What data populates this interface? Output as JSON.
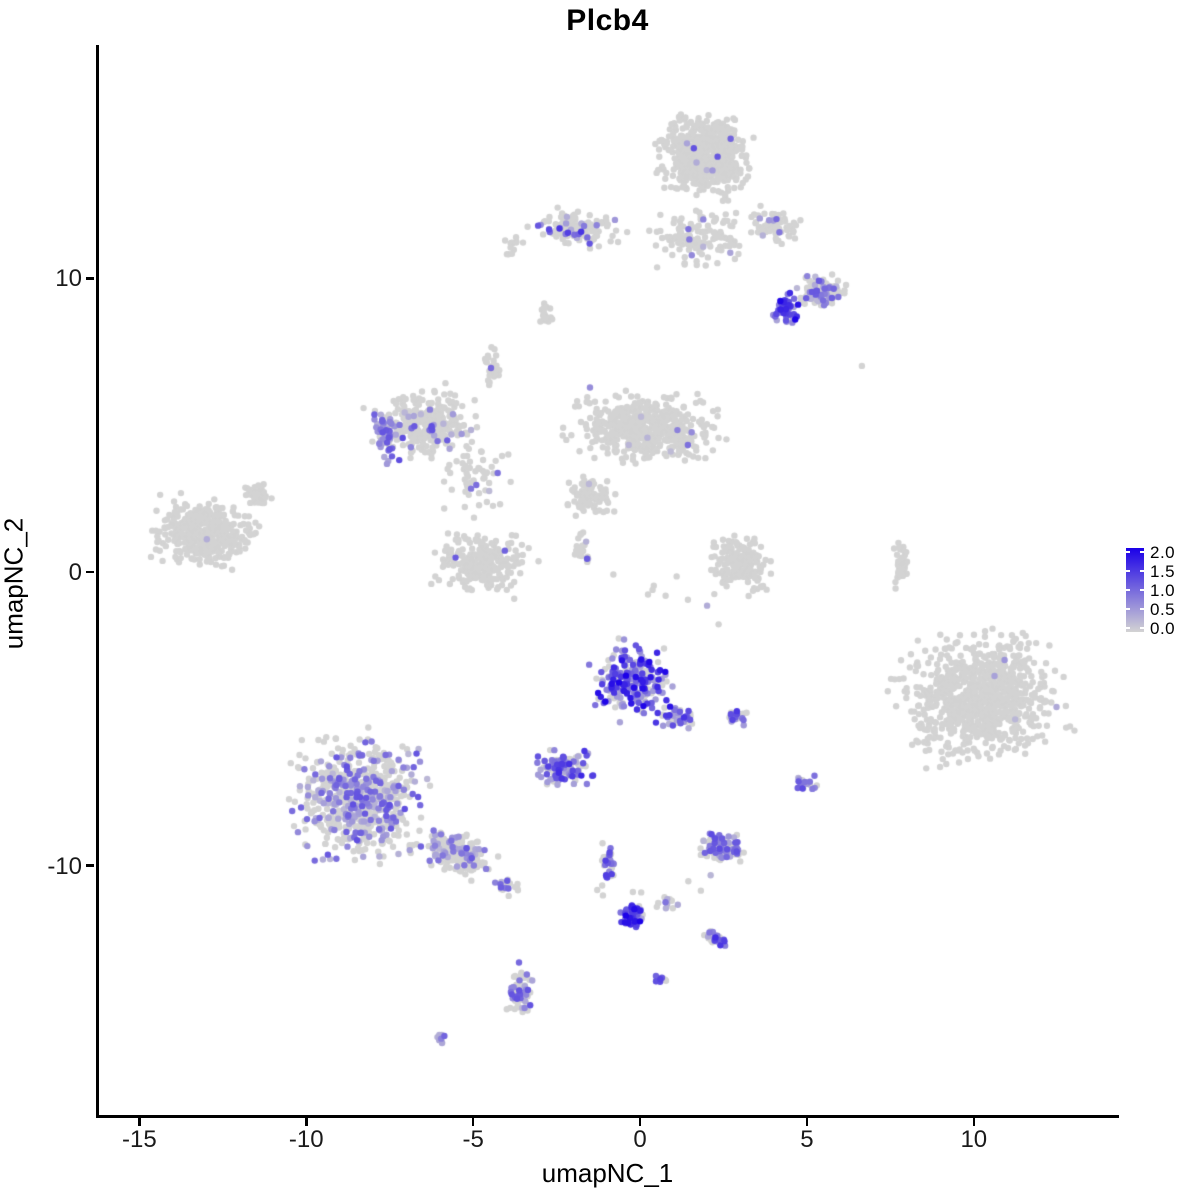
{
  "title": "Plcb4",
  "colors": {
    "background": "#ffffff",
    "axis": "#000000",
    "expression_low": "#d3d3d3",
    "expression_high": "#1b00e8"
  },
  "legend": {
    "min": 0.0,
    "max": 2.0,
    "labels": [
      "2.0",
      "1.5",
      "1.0",
      "0.5",
      "0.0"
    ]
  },
  "chart_data": {
    "type": "scatter",
    "title": "Plcb4",
    "xlabel": "umapNC_1",
    "ylabel": "umapNC_2",
    "xlim": [
      -16.3,
      14.35
    ],
    "ylim": [
      -18.6,
      17.95
    ],
    "grid": false,
    "legend_position": "right",
    "color_scale": {
      "low": "#d3d3d3",
      "high": "#1b00e8",
      "domain": [
        0,
        2
      ]
    },
    "x_ticks": [
      {
        "value": -15,
        "label": "-15"
      },
      {
        "value": -10,
        "label": "-10"
      },
      {
        "value": -5,
        "label": "-5"
      },
      {
        "value": 0,
        "label": "0"
      },
      {
        "value": 5,
        "label": "5"
      },
      {
        "value": 10,
        "label": "10"
      }
    ],
    "y_ticks": [
      {
        "value": 10,
        "label": "10"
      },
      {
        "value": 0,
        "label": "0"
      },
      {
        "value": -10,
        "label": "-10"
      }
    ],
    "point_radius": 3.2,
    "seed": 42,
    "clusters": [
      {
        "name": "top-main",
        "cx": 1.85,
        "cy": 14.2,
        "rx": 1.7,
        "ry": 1.65,
        "rot": -15,
        "n": 650,
        "frac": 0.012,
        "emax": 1.4
      },
      {
        "name": "top-scatter-below",
        "cx": 1.6,
        "cy": 11.4,
        "rx": 1.9,
        "ry": 1.25,
        "rot": 0,
        "n": 130,
        "frac": 0.04,
        "emax": 1.2
      },
      {
        "name": "top-left",
        "cx": -2.0,
        "cy": 11.7,
        "rx": 1.6,
        "ry": 0.75,
        "rot": -8,
        "n": 150,
        "frac": 0.16,
        "emax": 1.6
      },
      {
        "name": "top-left-strand",
        "cx": -3.85,
        "cy": 11.1,
        "rx": 0.35,
        "ry": 0.5,
        "rot": 0,
        "n": 14,
        "frac": 0.08,
        "emax": 1.0
      },
      {
        "name": "top-right-spur",
        "cx": 3.95,
        "cy": 11.8,
        "rx": 0.95,
        "ry": 0.7,
        "rot": -25,
        "n": 85,
        "frac": 0.07,
        "emax": 1.5
      },
      {
        "name": "right-upper",
        "cx": 5.35,
        "cy": 9.55,
        "rx": 0.95,
        "ry": 0.68,
        "rot": 0,
        "n": 115,
        "frac": 0.3,
        "emax": 1.2
      },
      {
        "name": "right-upper-dense",
        "cx": 4.3,
        "cy": 9.0,
        "rx": 0.55,
        "ry": 0.75,
        "rot": 0,
        "n": 55,
        "frac": 0.8,
        "emax": 2.0
      },
      {
        "name": "mini-mid-strand",
        "cx": -2.9,
        "cy": 8.85,
        "rx": 0.28,
        "ry": 0.6,
        "rot": 0,
        "n": 20,
        "frac": 0.12,
        "emax": 1.2
      },
      {
        "name": "midleft-main",
        "cx": -6.5,
        "cy": 5.0,
        "rx": 1.95,
        "ry": 1.55,
        "rot": 0,
        "n": 300,
        "frac": 0.1,
        "emax": 1.3
      },
      {
        "name": "midleft-arc",
        "cx": -7.75,
        "cy": 4.65,
        "rx": 0.45,
        "ry": 1.3,
        "rot": 12,
        "n": 55,
        "frac": 0.85,
        "emax": 1.3
      },
      {
        "name": "midleft-strand-up",
        "cx": -4.55,
        "cy": 6.9,
        "rx": 0.3,
        "ry": 0.9,
        "rot": 0,
        "n": 30,
        "frac": 0.1,
        "emax": 1.2
      },
      {
        "name": "midleft-sparse",
        "cx": -5.0,
        "cy": 3.2,
        "rx": 1.3,
        "ry": 1.5,
        "rot": 0,
        "n": 55,
        "frac": 0.08,
        "emax": 1.1
      },
      {
        "name": "mid-main",
        "cx": 0.1,
        "cy": 4.85,
        "rx": 2.7,
        "ry": 1.5,
        "rot": -5,
        "n": 520,
        "frac": 0.012,
        "emax": 1.0
      },
      {
        "name": "mid-lower-ext",
        "cx": -1.6,
        "cy": 2.6,
        "rx": 0.95,
        "ry": 0.95,
        "rot": 0,
        "n": 90,
        "frac": 0.03,
        "emax": 1.0
      },
      {
        "name": "mid-strand-down",
        "cx": -1.85,
        "cy": 0.9,
        "rx": 0.35,
        "ry": 1.0,
        "rot": 0,
        "n": 22,
        "frac": 0.14,
        "emax": 1.5
      },
      {
        "name": "hook-cluster",
        "cx": -4.8,
        "cy": 0.3,
        "rx": 1.75,
        "ry": 1.35,
        "rot": 0,
        "n": 240,
        "frac": 0.02,
        "emax": 1.3
      },
      {
        "name": "left-main",
        "cx": -13.2,
        "cy": 1.3,
        "rx": 1.85,
        "ry": 1.5,
        "rot": -10,
        "n": 430,
        "frac": 0.004,
        "emax": 1.1
      },
      {
        "name": "left-spur",
        "cx": -11.55,
        "cy": 2.6,
        "rx": 0.75,
        "ry": 0.45,
        "rot": -40,
        "n": 40,
        "frac": 0,
        "emax": 0
      },
      {
        "name": "rightmid-crescent",
        "cx": 2.9,
        "cy": 0.25,
        "rx": 1.15,
        "ry": 1.2,
        "rot": 0,
        "n": 170,
        "frac": 0.012,
        "emax": 1.1
      },
      {
        "name": "right-strand",
        "cx": 7.75,
        "cy": 0.2,
        "rx": 0.28,
        "ry": 1.05,
        "rot": 0,
        "n": 40,
        "frac": 0,
        "emax": 0
      },
      {
        "name": "bigright",
        "cx": 10.05,
        "cy": -4.3,
        "rx": 3.0,
        "ry": 2.75,
        "rot": 20,
        "n": 850,
        "frac": 0.003,
        "emax": 1.1
      },
      {
        "name": "center-dense",
        "cx": -0.3,
        "cy": -3.7,
        "rx": 1.5,
        "ry": 1.65,
        "rot": 0,
        "n": 240,
        "frac": 0.72,
        "emax": 2.0
      },
      {
        "name": "center-tail",
        "cx": 1.0,
        "cy": -4.95,
        "rx": 0.7,
        "ry": 0.45,
        "rot": -20,
        "n": 40,
        "frac": 0.5,
        "emax": 1.6
      },
      {
        "name": "center-side",
        "cx": 2.8,
        "cy": -4.9,
        "rx": 0.4,
        "ry": 0.45,
        "rot": 0,
        "n": 25,
        "frac": 0.6,
        "emax": 1.6
      },
      {
        "name": "purple-mid-left",
        "cx": -2.35,
        "cy": -6.7,
        "rx": 1.05,
        "ry": 0.75,
        "rot": 0,
        "n": 120,
        "frac": 0.62,
        "emax": 1.7
      },
      {
        "name": "small-pair-right",
        "cx": 4.9,
        "cy": -7.2,
        "rx": 0.45,
        "ry": 0.4,
        "rot": 0,
        "n": 22,
        "frac": 0.45,
        "emax": 1.4
      },
      {
        "name": "bottomleft-main",
        "cx": -8.5,
        "cy": -7.7,
        "rx": 2.45,
        "ry": 2.6,
        "rot": 0,
        "n": 680,
        "frac": 0.3,
        "emax": 1.25
      },
      {
        "name": "bottomleft-tail",
        "cx": -5.6,
        "cy": -9.6,
        "rx": 1.5,
        "ry": 0.8,
        "rot": -25,
        "n": 190,
        "frac": 0.25,
        "emax": 1.2
      },
      {
        "name": "bottomleft-tip",
        "cx": -4.1,
        "cy": -10.7,
        "rx": 0.5,
        "ry": 0.4,
        "rot": -25,
        "n": 25,
        "frac": 0.3,
        "emax": 1.2
      },
      {
        "name": "bottomright-blob",
        "cx": 2.3,
        "cy": -9.4,
        "rx": 1.0,
        "ry": 0.68,
        "rot": 0,
        "n": 115,
        "frac": 0.42,
        "emax": 1.3
      },
      {
        "name": "strand-down",
        "cx": -1.0,
        "cy": -9.9,
        "rx": 0.27,
        "ry": 1.05,
        "rot": 8,
        "n": 35,
        "frac": 0.45,
        "emax": 1.6
      },
      {
        "name": "blue-blob",
        "cx": -0.32,
        "cy": -11.7,
        "rx": 0.45,
        "ry": 0.6,
        "rot": 0,
        "n": 65,
        "frac": 0.9,
        "emax": 2.0
      },
      {
        "name": "blob-side",
        "cx": 0.65,
        "cy": -11.3,
        "rx": 0.5,
        "ry": 0.3,
        "rot": 0,
        "n": 12,
        "frac": 0.5,
        "emax": 1.5
      },
      {
        "name": "diag-small",
        "cx": 2.2,
        "cy": -12.5,
        "rx": 0.55,
        "ry": 0.33,
        "rot": -30,
        "n": 35,
        "frac": 0.65,
        "emax": 1.6
      },
      {
        "name": "bottom-vertical",
        "cx": -3.67,
        "cy": -14.3,
        "rx": 0.5,
        "ry": 1.15,
        "rot": 0,
        "n": 75,
        "frac": 0.45,
        "emax": 1.3
      },
      {
        "name": "bottom-dots",
        "cx": 0.55,
        "cy": -13.9,
        "rx": 0.3,
        "ry": 0.27,
        "rot": 0,
        "n": 12,
        "frac": 0.6,
        "emax": 1.4
      },
      {
        "name": "tiny-bottom",
        "cx": -6.1,
        "cy": -15.9,
        "rx": 0.28,
        "ry": 0.25,
        "rot": 0,
        "n": 9,
        "frac": 0.55,
        "emax": 1.3
      },
      {
        "name": "sparse-singles-mid",
        "cx": 0.5,
        "cy": -0.8,
        "rx": 5.5,
        "ry": 1.6,
        "rot": 0,
        "n": 10,
        "frac": 0.05,
        "emax": 1.0
      },
      {
        "name": "sparse-singles-bottom",
        "cx": 0.5,
        "cy": -10.8,
        "rx": 3.2,
        "ry": 1.4,
        "rot": 0,
        "n": 8,
        "frac": 0.15,
        "emax": 1.2
      },
      {
        "name": "single-right-top",
        "cx": 6.6,
        "cy": 7.05,
        "rx": 0.1,
        "ry": 0.1,
        "rot": 0,
        "n": 1,
        "frac": 0,
        "emax": 0
      }
    ]
  }
}
